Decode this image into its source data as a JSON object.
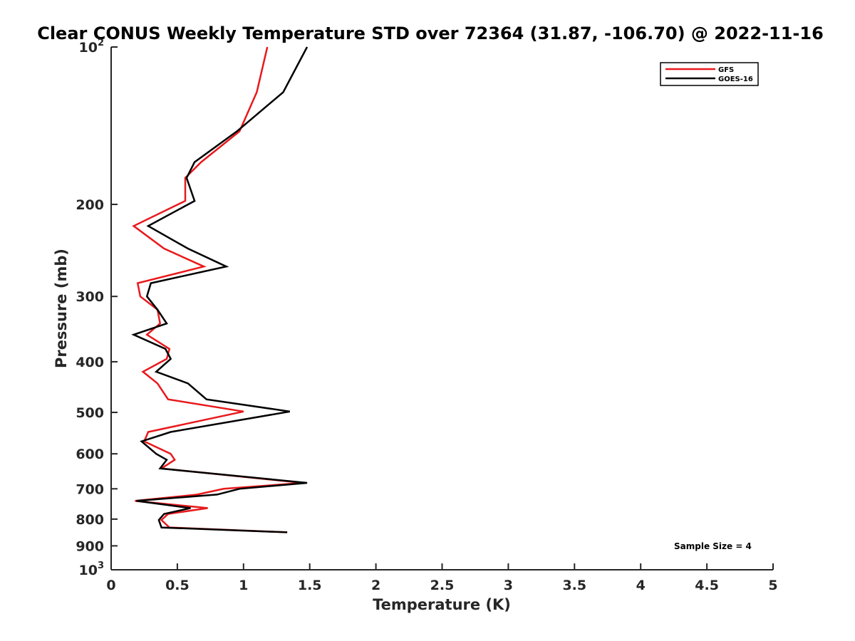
{
  "chart_data": {
    "type": "line",
    "title": "Clear CONUS Weekly Temperature STD over 72364 (31.87, -106.70) @ 2022-11-16",
    "xlabel": "Temperature (K)",
    "ylabel": "Pressure (mb)",
    "xlim": [
      0,
      5
    ],
    "ylim": [
      100,
      1000
    ],
    "y_scale": "log",
    "y_direction": "reversed",
    "x_ticks": [
      "0",
      "0.5",
      "1",
      "1.5",
      "2",
      "2.5",
      "3",
      "3.5",
      "4",
      "4.5",
      "5"
    ],
    "y_ticks": [
      {
        "value": 100,
        "base": "10",
        "exp": "2"
      },
      {
        "value": 200,
        "label": "200"
      },
      {
        "value": 300,
        "label": "300"
      },
      {
        "value": 400,
        "label": "400"
      },
      {
        "value": 500,
        "label": "500"
      },
      {
        "value": 600,
        "label": "600"
      },
      {
        "value": 700,
        "label": "700"
      },
      {
        "value": 800,
        "label": "800"
      },
      {
        "value": 900,
        "label": "900"
      },
      {
        "value": 1000,
        "base": "10",
        "exp": "3"
      }
    ],
    "grid": false,
    "legend_position": "top-right",
    "annotation": "Sample Size = 4",
    "series": [
      {
        "name": "GFS",
        "color": "#e8191c",
        "x": [
          1.18,
          1.1,
          0.97,
          0.68,
          0.56,
          0.56,
          0.17,
          0.4,
          0.7,
          0.2,
          0.22,
          0.35,
          0.37,
          0.27,
          0.44,
          0.42,
          0.24,
          0.35,
          0.43,
          1.0,
          0.28,
          0.25,
          0.45,
          0.48,
          0.38,
          1.45,
          0.85,
          0.65,
          0.18,
          0.73,
          0.43,
          0.38,
          0.44,
          1.33
        ],
        "y": [
          100,
          122,
          145,
          166,
          178,
          197,
          220,
          243,
          263,
          283,
          300,
          318,
          338,
          355,
          378,
          395,
          418,
          440,
          472,
          498,
          545,
          568,
          600,
          616,
          640,
          682,
          700,
          718,
          738,
          762,
          782,
          803,
          830,
          848
        ]
      },
      {
        "name": "GOES-16",
        "color": "#000000",
        "x": [
          1.48,
          1.3,
          0.95,
          0.63,
          0.57,
          0.63,
          0.28,
          0.58,
          0.87,
          0.3,
          0.27,
          0.35,
          0.42,
          0.17,
          0.41,
          0.45,
          0.34,
          0.58,
          0.72,
          1.35,
          0.45,
          0.23,
          0.34,
          0.42,
          0.37,
          1.48,
          0.97,
          0.8,
          0.19,
          0.6,
          0.4,
          0.36,
          0.38,
          1.33
        ],
        "y": [
          100,
          122,
          145,
          166,
          178,
          197,
          220,
          243,
          263,
          283,
          300,
          318,
          338,
          355,
          378,
          395,
          418,
          440,
          472,
          498,
          545,
          568,
          600,
          616,
          640,
          682,
          700,
          718,
          738,
          762,
          782,
          803,
          830,
          848
        ]
      }
    ]
  }
}
